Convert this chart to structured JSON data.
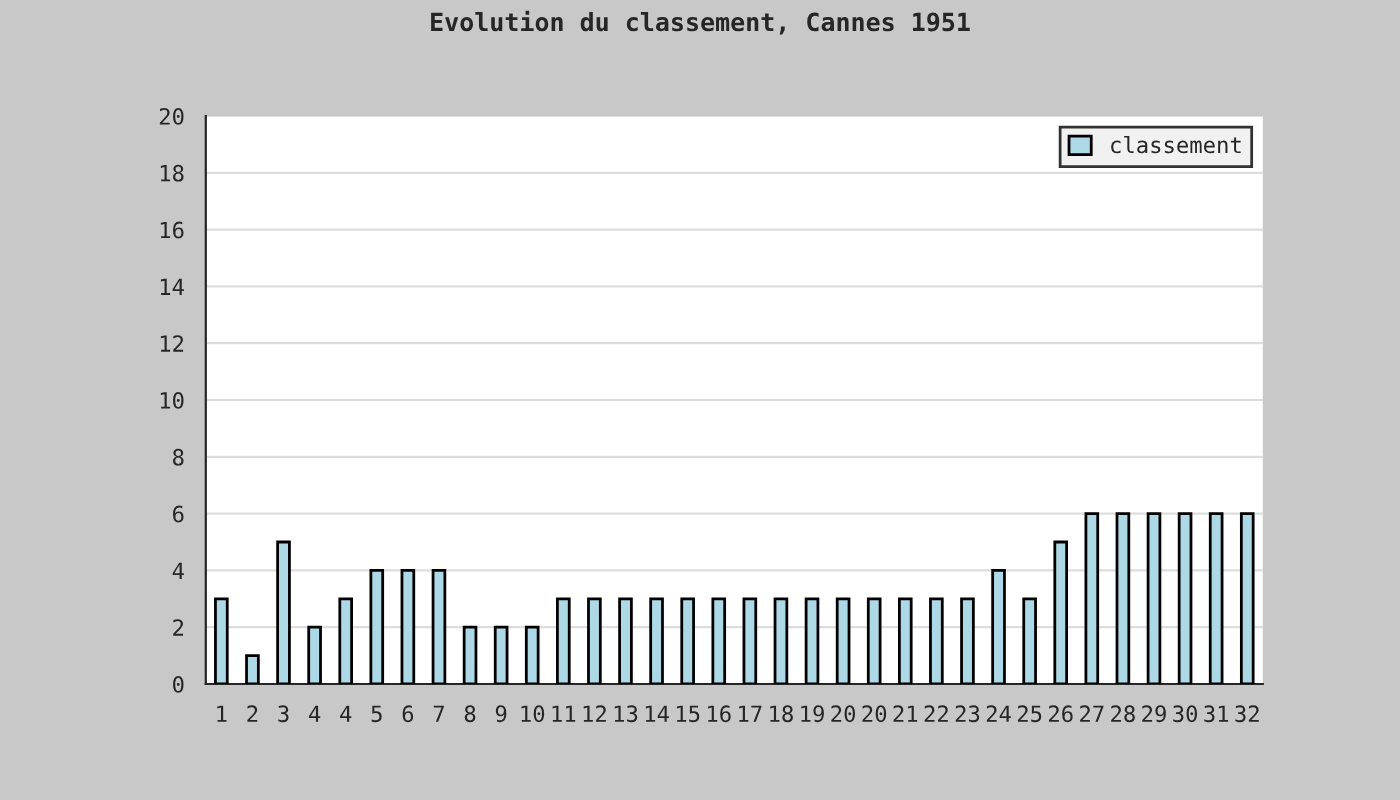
{
  "chart_data": {
    "type": "bar",
    "title": "Evolution du classement, Cannes 1951",
    "categories": [
      "1",
      "2",
      "3",
      "4",
      "4",
      "5",
      "6",
      "7",
      "8",
      "9",
      "10",
      "11",
      "12",
      "13",
      "14",
      "15",
      "16",
      "17",
      "18",
      "19",
      "20",
      "20",
      "21",
      "22",
      "23",
      "24",
      "25",
      "26",
      "27",
      "28",
      "29",
      "30",
      "31",
      "32"
    ],
    "series": [
      {
        "name": "classement",
        "color": "#add8e6",
        "values": [
          3,
          1,
          5,
          2,
          3,
          4,
          4,
          4,
          2,
          2,
          2,
          3,
          3,
          3,
          3,
          3,
          3,
          3,
          3,
          3,
          3,
          3,
          3,
          3,
          3,
          4,
          3,
          5,
          6,
          6,
          6,
          6,
          6,
          6
        ]
      }
    ],
    "ylim": [
      0,
      20
    ],
    "yticks": [
      0,
      2,
      4,
      6,
      8,
      10,
      12,
      14,
      16,
      18,
      20
    ],
    "grid": "y",
    "legend": "top right"
  }
}
